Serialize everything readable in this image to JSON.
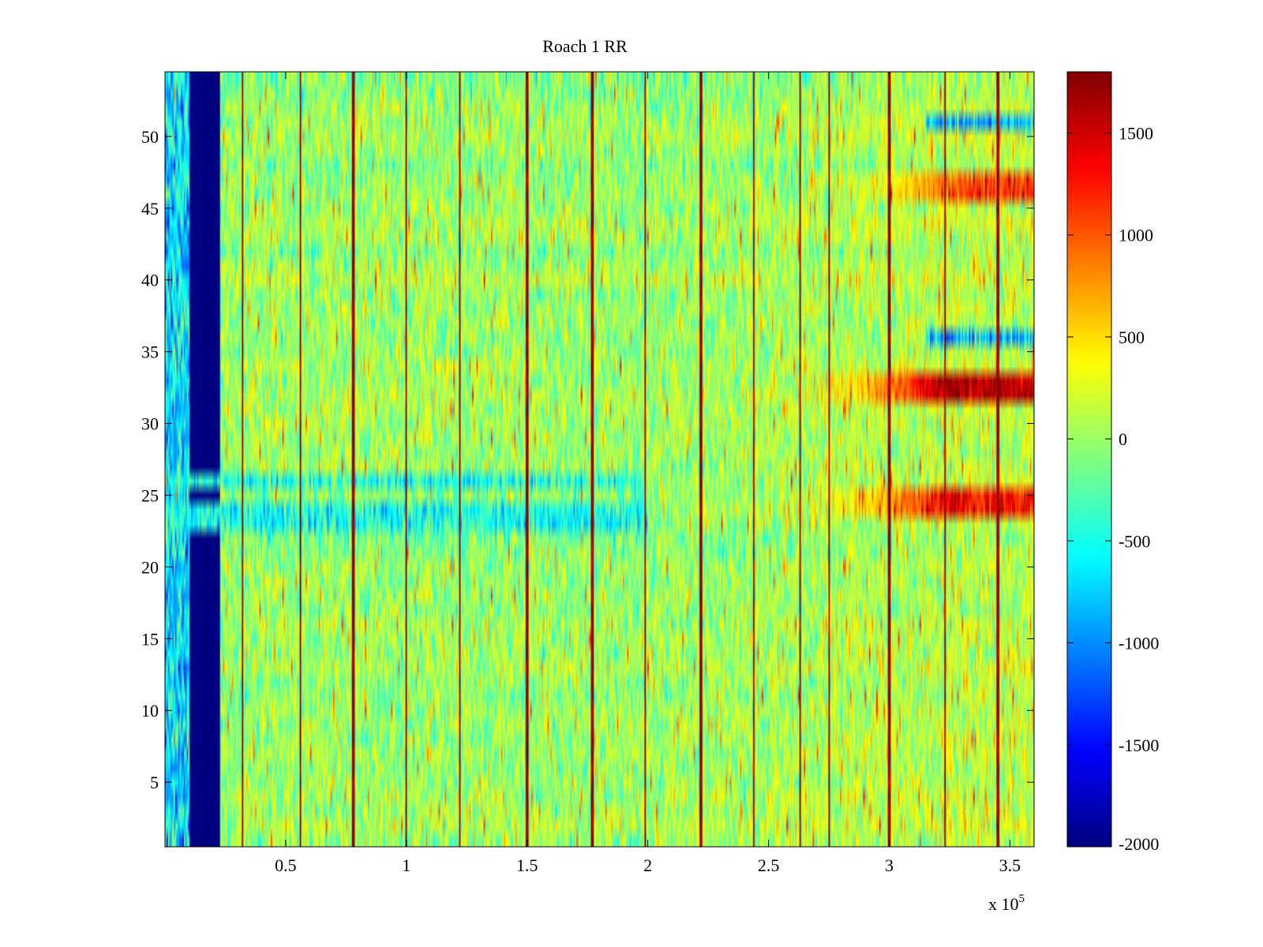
{
  "chart_data": {
    "type": "heatmap",
    "title": "Roach 1 RR",
    "xlabel": "",
    "ylabel": "",
    "x_multiplier": "x 10",
    "x_multiplier_exponent": "5",
    "xlim": [
      0,
      360000
    ],
    "ylim": [
      0.5,
      54.5
    ],
    "x_ticks": [
      50000,
      100000,
      150000,
      200000,
      250000,
      300000,
      350000
    ],
    "x_tick_labels": [
      "0.5",
      "1",
      "1.5",
      "2",
      "2.5",
      "3",
      "3.5"
    ],
    "y_ticks": [
      5,
      10,
      15,
      20,
      25,
      30,
      35,
      40,
      45,
      50
    ],
    "y_tick_labels": [
      "5",
      "10",
      "15",
      "20",
      "25",
      "30",
      "35",
      "40",
      "45",
      "50"
    ],
    "rows": 54,
    "colorbar": {
      "colormap": "jet",
      "clim": [
        -2000,
        1800
      ],
      "ticks": [
        -2000,
        -1500,
        -1000,
        -500,
        0,
        500,
        1000,
        1500
      ],
      "tick_labels": [
        "-2000",
        "-1500",
        "-1000",
        "-500",
        "0",
        "500",
        "1000",
        "1500"
      ]
    },
    "background_value": 0,
    "dead_band": {
      "x_range": [
        10000,
        23000
      ],
      "value": -2000
    },
    "low_band": {
      "x_range": [
        0,
        10000
      ],
      "value": -700
    },
    "vertical_spike_x": [
      32000,
      56000,
      78000,
      100000,
      122000,
      150000,
      177000,
      199000,
      222000,
      244000,
      263000,
      275000,
      300000,
      323000,
      345000
    ],
    "hot_rows": [
      {
        "rows": [
          32,
          33
        ],
        "x_start": 262000,
        "peak_value": 1600
      },
      {
        "rows": [
          24,
          25
        ],
        "x_start": 262000,
        "peak_value": 1300
      },
      {
        "rows": [
          46,
          47
        ],
        "x_start": 275000,
        "peak_value": 1100
      }
    ],
    "cool_rows": [
      {
        "rows": [
          23,
          24,
          26
        ],
        "x_end": 200000,
        "value": -500
      },
      {
        "rows": [
          36,
          51
        ],
        "x_start": 315000,
        "value": -900
      }
    ]
  }
}
